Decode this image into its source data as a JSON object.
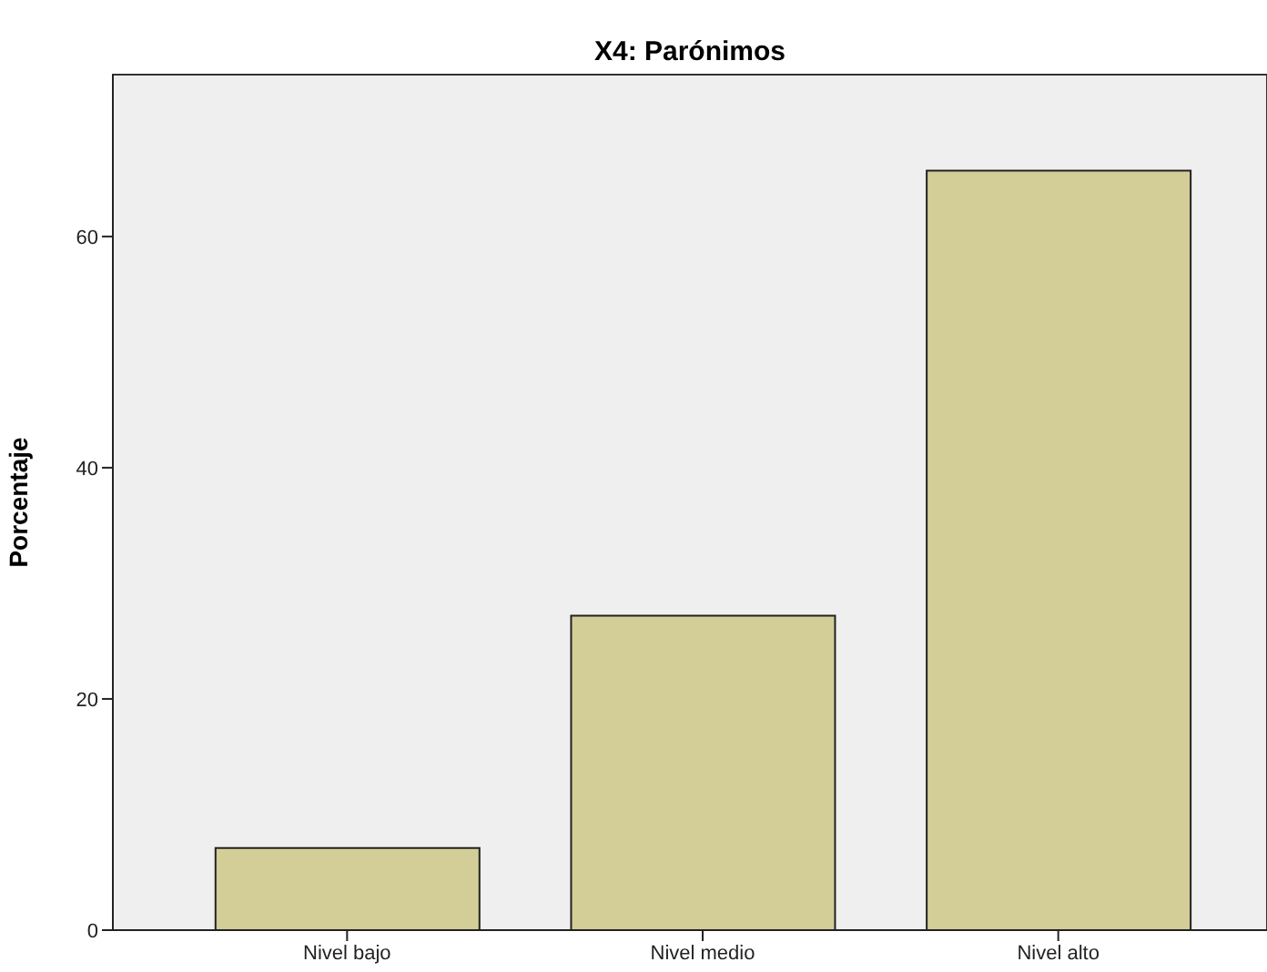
{
  "chart_data": {
    "type": "bar",
    "title": "X4: Parónimos",
    "ylabel": "Porcentaje",
    "categories": [
      "Nivel bajo",
      "Nivel medio",
      "Nivel alto"
    ],
    "values": [
      7.1,
      27.2,
      65.7
    ],
    "color": "#d3ce97",
    "ylim": [
      0,
      74
    ],
    "yticks": [
      0,
      20,
      40,
      60
    ]
  }
}
